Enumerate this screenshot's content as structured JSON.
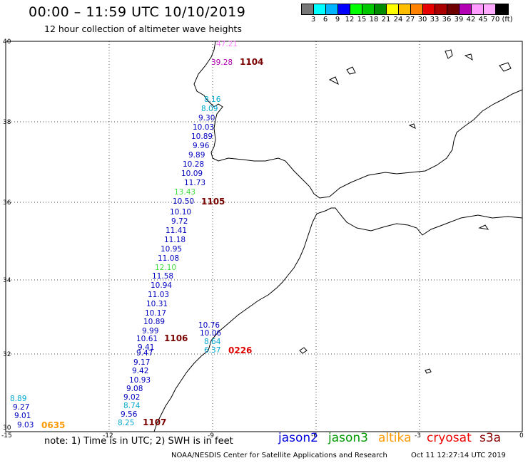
{
  "header": {
    "title": "00:00 – 11:59 UTC 10/10/2019",
    "subtitle": "12 hour collection of altimeter wave heights"
  },
  "legend": {
    "colors": [
      "#777777",
      "#00ffff",
      "#00b4ff",
      "#0000ff",
      "#00ff00",
      "#00c800",
      "#008c00",
      "#ffff00",
      "#ffbe00",
      "#ff8200",
      "#e60000",
      "#aa0000",
      "#6e0000",
      "#b400b4",
      "#ff9bff",
      "#ffaaff",
      "#000000"
    ],
    "labels": [
      "3",
      "6",
      "9",
      "12",
      "15",
      "18",
      "21",
      "24",
      "27",
      "30",
      "33",
      "36",
      "39",
      "42",
      "45",
      "70",
      "(ft)"
    ]
  },
  "axes": {
    "lat_labels": [
      "40",
      "38",
      "36",
      "34",
      "32",
      "30"
    ],
    "lon_labels": [
      "-15",
      "-12",
      "-9",
      "-6",
      "-3",
      "0"
    ]
  },
  "observations": [
    {
      "v": "47.21",
      "c": "#ff80ff"
    },
    {
      "v": "39.28",
      "c": "#b000b0"
    },
    {
      "v": "8.16",
      "c": "#00a8d0"
    },
    {
      "v": "8.09",
      "c": "#00a8d0"
    },
    {
      "v": "9.30",
      "c": "#0000c0"
    },
    {
      "v": "10.03",
      "c": "#0000c0"
    },
    {
      "v": "10.89",
      "c": "#0000c0"
    },
    {
      "v": "9.96",
      "c": "#0000c0"
    },
    {
      "v": "9.89",
      "c": "#0000c0"
    },
    {
      "v": "10.28",
      "c": "#0000c0"
    },
    {
      "v": "10.09",
      "c": "#0000c0"
    },
    {
      "v": "11.73",
      "c": "#0000c0"
    },
    {
      "v": "13.43",
      "c": "#44dd44"
    },
    {
      "v": "10.50",
      "c": "#0000c0"
    },
    {
      "v": "10.10",
      "c": "#0000c0"
    },
    {
      "v": "9.72",
      "c": "#0000c0"
    },
    {
      "v": "11.41",
      "c": "#0000c0"
    },
    {
      "v": "11.18",
      "c": "#0000c0"
    },
    {
      "v": "10.95",
      "c": "#0000c0"
    },
    {
      "v": "11.08",
      "c": "#0000c0"
    },
    {
      "v": "12.10",
      "c": "#44dd44"
    },
    {
      "v": "11.58",
      "c": "#0000c0"
    },
    {
      "v": "10.94",
      "c": "#0000c0"
    },
    {
      "v": "11.03",
      "c": "#0000c0"
    },
    {
      "v": "10.31",
      "c": "#0000c0"
    },
    {
      "v": "10.17",
      "c": "#0000c0"
    },
    {
      "v": "10.89",
      "c": "#0000c0"
    },
    {
      "v": "9.99",
      "c": "#0000c0"
    },
    {
      "v": "10.61",
      "c": "#0000c0"
    },
    {
      "v": "9.41",
      "c": "#0000c0"
    },
    {
      "v": "9.47",
      "c": "#0000c0"
    },
    {
      "v": "9.17",
      "c": "#0000c0"
    },
    {
      "v": "9.42",
      "c": "#0000c0"
    },
    {
      "v": "10.93",
      "c": "#0000c0"
    },
    {
      "v": "9.08",
      "c": "#0000c0"
    },
    {
      "v": "9.02",
      "c": "#0000c0"
    },
    {
      "v": "8.74",
      "c": "#00a8d0"
    },
    {
      "v": "9.56",
      "c": "#0000c0"
    },
    {
      "v": "8.25",
      "c": "#00a8d0"
    },
    {
      "v": "10.76",
      "c": "#0000c0"
    },
    {
      "v": "10.06",
      "c": "#0000c0"
    },
    {
      "v": "8.64",
      "c": "#00a8d0"
    },
    {
      "v": "6.37",
      "c": "#00a8d0"
    },
    {
      "v": "8.89",
      "c": "#00a8d0"
    },
    {
      "v": "9.27",
      "c": "#0000c0"
    },
    {
      "v": "9.01",
      "c": "#0000c0"
    },
    {
      "v": "9.03",
      "c": "#0000c0"
    }
  ],
  "tracks": [
    {
      "v": "1104",
      "c": "#7a0000"
    },
    {
      "v": "1105",
      "c": "#7a0000"
    },
    {
      "v": "1106",
      "c": "#7a0000"
    },
    {
      "v": "1107",
      "c": "#7a0000"
    },
    {
      "v": "0226",
      "c": "#e00000"
    },
    {
      "v": "0635",
      "c": "#ff9900"
    }
  ],
  "footer": {
    "note": "note:  1) Time is in UTC;  2) SWH is in feet",
    "satellites": [
      {
        "name": "jason2",
        "color": "#0000dd"
      },
      {
        "name": "jason3",
        "color": "#009900"
      },
      {
        "name": "altika",
        "color": "#ff9900"
      },
      {
        "name": "cryosat",
        "color": "#ee0000"
      },
      {
        "name": "s3a",
        "color": "#880000"
      }
    ],
    "credit": "NOAA/NESDIS Center for Satellite Applications and Research",
    "timestamp": "Oct 11 12:27:14 UTC 2019"
  }
}
